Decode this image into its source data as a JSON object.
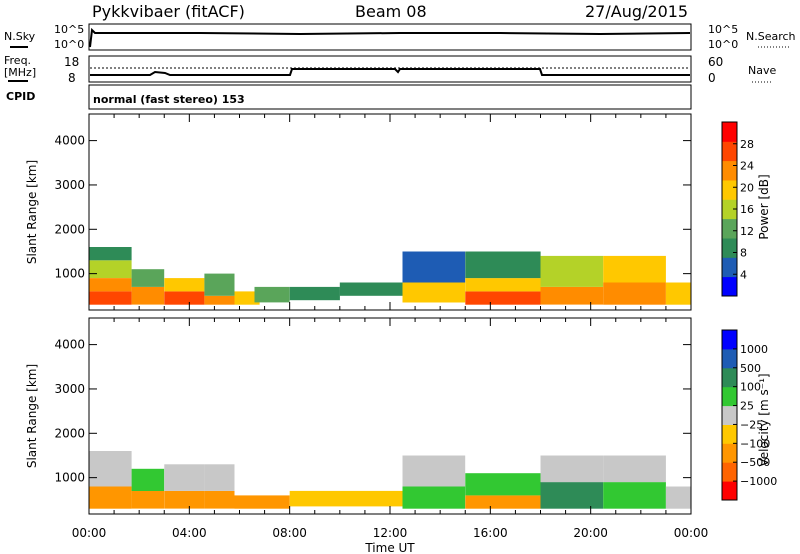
{
  "header": {
    "radar": "Pykkvibaer (fitACF)",
    "beam": "Beam 08",
    "date": "27/Aug/2015"
  },
  "strips": {
    "nsky_label": "N.Sky",
    "nsky_left_ticks": [
      "10^5",
      "10^0"
    ],
    "nsearch_label": "N.Search",
    "nsearch_right_ticks": [
      "10^5",
      "10^0"
    ],
    "freq_label": "Freq.",
    "freq_unit": "[MHz]",
    "freq_ticks": [
      "18",
      "8"
    ],
    "nave_label": "Nave",
    "nave_ticks": [
      "60",
      "0"
    ],
    "cpid_label": "CPID",
    "cpid_text": "normal (fast stereo) 153"
  },
  "colors": {
    "power": [
      "#0000ff",
      "#1e5cb4",
      "#2e8b57",
      "#5aa55a",
      "#b4d228",
      "#ffc800",
      "#ff8c00",
      "#ff4600",
      "#ff0000"
    ],
    "velocity": [
      "#ff0000",
      "#ff6400",
      "#ff9600",
      "#ffc800",
      "#c8c8c8",
      "#32c832",
      "#2e8b57",
      "#1e5cb4",
      "#0000ff"
    ]
  },
  "chart_data": [
    {
      "type": "heatmap",
      "quantity": "Power",
      "ylabel": "Slant Range [km]",
      "colorbar_label": "Power [dB]",
      "colorbar_ticks": [
        "28",
        "24",
        "20",
        "16",
        "12",
        "8",
        "4"
      ],
      "y_ticks": [
        "4000",
        "3000",
        "2000",
        "1000"
      ],
      "ylim": [
        180,
        4600
      ],
      "x_ticks": [
        "00:00",
        "04:00",
        "08:00",
        "12:00",
        "16:00",
        "20:00",
        "00:00"
      ],
      "xlim_hours": [
        0,
        24
      ],
      "xlabel": "",
      "data": [
        {
          "t": [
            0,
            1.7
          ],
          "r": [
            300,
            600
          ],
          "v": 28
        },
        {
          "t": [
            0,
            1.7
          ],
          "r": [
            600,
            900
          ],
          "v": 22
        },
        {
          "t": [
            0,
            1.7
          ],
          "r": [
            900,
            1300
          ],
          "v": 16
        },
        {
          "t": [
            0,
            1.7
          ],
          "r": [
            1300,
            1600
          ],
          "v": 8
        },
        {
          "t": [
            1.7,
            3.0
          ],
          "r": [
            300,
            700
          ],
          "v": 24
        },
        {
          "t": [
            1.7,
            3.0
          ],
          "r": [
            700,
            1100
          ],
          "v": 14
        },
        {
          "t": [
            3.0,
            4.6
          ],
          "r": [
            300,
            600
          ],
          "v": 26
        },
        {
          "t": [
            3.0,
            4.6
          ],
          "r": [
            600,
            900
          ],
          "v": 18
        },
        {
          "t": [
            4.6,
            5.8
          ],
          "r": [
            300,
            500
          ],
          "v": 24
        },
        {
          "t": [
            4.6,
            5.8
          ],
          "r": [
            500,
            1000
          ],
          "v": 14
        },
        {
          "t": [
            5.8,
            6.8
          ],
          "r": [
            300,
            600
          ],
          "v": 20
        },
        {
          "t": [
            6.6,
            8.0
          ],
          "r": [
            350,
            700
          ],
          "v": 12
        },
        {
          "t": [
            8.0,
            10.0
          ],
          "r": [
            400,
            700
          ],
          "v": 10
        },
        {
          "t": [
            10.0,
            12.5
          ],
          "r": [
            500,
            800
          ],
          "v": 8
        },
        {
          "t": [
            12.5,
            15.0
          ],
          "r": [
            350,
            800
          ],
          "v": 18
        },
        {
          "t": [
            12.5,
            15.0
          ],
          "r": [
            800,
            1500
          ],
          "v": 6
        },
        {
          "t": [
            15.0,
            18.0
          ],
          "r": [
            300,
            600
          ],
          "v": 28
        },
        {
          "t": [
            15.0,
            18.0
          ],
          "r": [
            600,
            900
          ],
          "v": 20
        },
        {
          "t": [
            15.0,
            18.0
          ],
          "r": [
            900,
            1500
          ],
          "v": 10
        },
        {
          "t": [
            18.0,
            20.5
          ],
          "r": [
            300,
            700
          ],
          "v": 22
        },
        {
          "t": [
            18.0,
            20.5
          ],
          "r": [
            700,
            1400
          ],
          "v": 16
        },
        {
          "t": [
            20.5,
            23.0
          ],
          "r": [
            300,
            800
          ],
          "v": 22
        },
        {
          "t": [
            20.5,
            23.0
          ],
          "r": [
            800,
            1400
          ],
          "v": 18
        },
        {
          "t": [
            23.0,
            24.0
          ],
          "r": [
            300,
            800
          ],
          "v": 20
        }
      ]
    },
    {
      "type": "heatmap",
      "quantity": "Velocity",
      "ylabel": "Slant Range [km]",
      "colorbar_label": "Velocity [m s⁻¹]",
      "colorbar_ticks": [
        "1000",
        "500",
        "100",
        "25",
        "−25",
        "−100",
        "−500",
        "−1000"
      ],
      "y_ticks": [
        "4000",
        "3000",
        "2000",
        "1000"
      ],
      "ylim": [
        180,
        4600
      ],
      "x_ticks": [
        "00:00",
        "04:00",
        "08:00",
        "12:00",
        "16:00",
        "20:00",
        "00:00"
      ],
      "xlim_hours": [
        0,
        24
      ],
      "xlabel": "Time UT",
      "data": [
        {
          "t": [
            0,
            1.7
          ],
          "r": [
            300,
            800
          ],
          "v": -100
        },
        {
          "t": [
            0,
            1.7
          ],
          "r": [
            800,
            1600
          ],
          "v": 0
        },
        {
          "t": [
            1.7,
            3.0
          ],
          "r": [
            300,
            700
          ],
          "v": -100
        },
        {
          "t": [
            1.7,
            3.0
          ],
          "r": [
            700,
            1200
          ],
          "v": 100
        },
        {
          "t": [
            3.0,
            4.6
          ],
          "r": [
            300,
            700
          ],
          "v": -100
        },
        {
          "t": [
            3.0,
            4.6
          ],
          "r": [
            700,
            1300
          ],
          "v": 0
        },
        {
          "t": [
            4.6,
            5.8
          ],
          "r": [
            300,
            700
          ],
          "v": -100
        },
        {
          "t": [
            4.6,
            5.8
          ],
          "r": [
            700,
            1300
          ],
          "v": 0
        },
        {
          "t": [
            5.8,
            8.0
          ],
          "r": [
            300,
            600
          ],
          "v": -100
        },
        {
          "t": [
            8.0,
            12.5
          ],
          "r": [
            350,
            700
          ],
          "v": -50
        },
        {
          "t": [
            12.5,
            15.0
          ],
          "r": [
            300,
            800
          ],
          "v": 100
        },
        {
          "t": [
            12.5,
            15.0
          ],
          "r": [
            800,
            1500
          ],
          "v": 0
        },
        {
          "t": [
            15.0,
            18.0
          ],
          "r": [
            300,
            600
          ],
          "v": -100
        },
        {
          "t": [
            15.0,
            18.0
          ],
          "r": [
            600,
            1100
          ],
          "v": 100
        },
        {
          "t": [
            18.0,
            20.5
          ],
          "r": [
            300,
            900
          ],
          "v": 500
        },
        {
          "t": [
            18.0,
            20.5
          ],
          "r": [
            900,
            1500
          ],
          "v": 0
        },
        {
          "t": [
            20.5,
            23.0
          ],
          "r": [
            300,
            900
          ],
          "v": 100
        },
        {
          "t": [
            20.5,
            23.0
          ],
          "r": [
            900,
            1500
          ],
          "v": 0
        },
        {
          "t": [
            23.0,
            24.0
          ],
          "r": [
            300,
            800
          ],
          "v": 0
        }
      ]
    }
  ]
}
